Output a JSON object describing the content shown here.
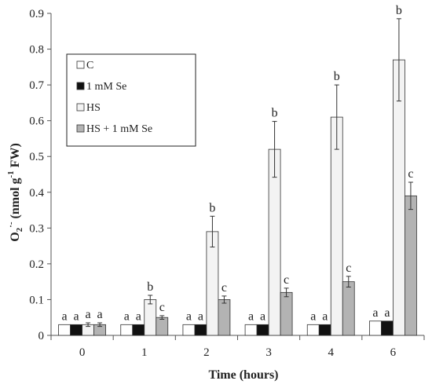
{
  "chart_data": {
    "type": "bar",
    "xlabel": "Time (hours)",
    "ylabel_main": "O",
    "ylabel_sub": "2",
    "ylabel_sup1": "·-",
    "ylabel_mid": " (nmol g",
    "ylabel_sup2": "-1",
    "ylabel_end": " FW)",
    "ylim": [
      0,
      0.9
    ],
    "yticks": [
      "0",
      "0.1",
      "0.2",
      "0.3",
      "0.4",
      "0.5",
      "0.6",
      "0.7",
      "0.8",
      "0.9"
    ],
    "categories": [
      "0",
      "1",
      "2",
      "3",
      "4",
      "6"
    ],
    "grid": false,
    "legend_position": "upper-left",
    "series": [
      {
        "name": "C",
        "color": "#ffffff",
        "values": [
          0.03,
          0.03,
          0.03,
          0.03,
          0.03,
          0.04
        ],
        "errors": [
          0.0,
          0.0,
          0.0,
          0.0,
          0.0,
          0.0
        ],
        "labels": [
          "a",
          "a",
          "a",
          "a",
          "a",
          "a"
        ]
      },
      {
        "name": "1 mM Se",
        "color": "#111111",
        "values": [
          0.03,
          0.03,
          0.03,
          0.03,
          0.03,
          0.04
        ],
        "errors": [
          0.0,
          0.0,
          0.0,
          0.0,
          0.0,
          0.0
        ],
        "labels": [
          "a",
          "a",
          "a",
          "a",
          "a",
          "a"
        ]
      },
      {
        "name": "HS",
        "color": "#f3f3f3",
        "values": [
          0.03,
          0.1,
          0.29,
          0.52,
          0.61,
          0.77
        ],
        "errors": [
          0.005,
          0.012,
          0.043,
          0.078,
          0.09,
          0.115
        ],
        "labels": [
          "a",
          "b",
          "b",
          "b",
          "b",
          "b"
        ]
      },
      {
        "name": "HS + 1 mM Se",
        "color": "#b3b3b3",
        "values": [
          0.03,
          0.05,
          0.1,
          0.12,
          0.15,
          0.39
        ],
        "errors": [
          0.005,
          0.005,
          0.01,
          0.012,
          0.015,
          0.038
        ],
        "labels": [
          "a",
          "c",
          "c",
          "c",
          "c",
          "c"
        ]
      }
    ]
  }
}
